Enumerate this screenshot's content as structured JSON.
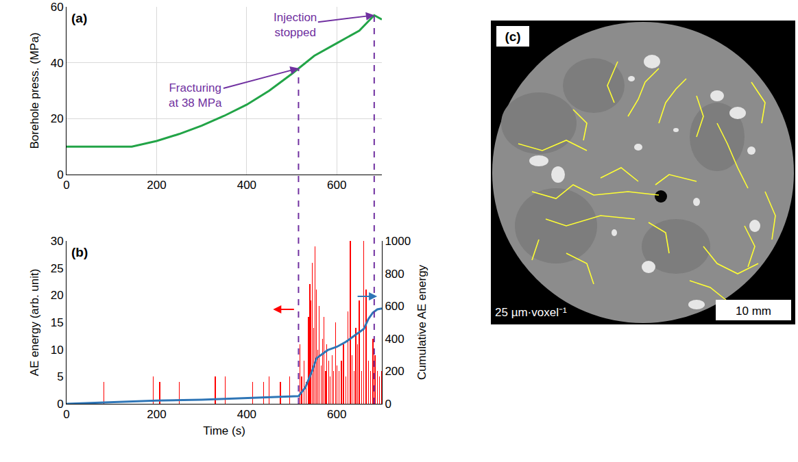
{
  "chart_data": [
    {
      "type": "line",
      "panel": "(a)",
      "y_label": "Borehole press. (MPa)",
      "color": "#22a447",
      "grid": true,
      "x": [
        0,
        50,
        100,
        145,
        200,
        250,
        300,
        350,
        400,
        450,
        500,
        515,
        550,
        600,
        650,
        683,
        700
      ],
      "values": [
        10,
        10,
        10,
        10,
        12,
        14.5,
        17.5,
        21,
        25,
        30,
        36,
        38,
        42.5,
        47,
        51.5,
        57,
        55.5
      ],
      "xlim": [
        0,
        700
      ],
      "xticks": [
        0,
        200,
        400,
        600
      ],
      "ylim": [
        0,
        60
      ],
      "yticks": [
        0,
        20,
        40,
        60
      ],
      "annotations": [
        {
          "text": "Fracturing at 38 MPa",
          "x": 515,
          "y": 38
        },
        {
          "text": "Injection stopped",
          "x": 683,
          "y": 57
        }
      ]
    },
    {
      "type": "bar",
      "panel": "(b)",
      "x_label": "Time (s)",
      "y_label": "AE energy (arb. unit)",
      "y2_label": "Cumulative AE energy",
      "grid": false,
      "xlim": [
        0,
        700
      ],
      "xticks": [
        0,
        200,
        400,
        600
      ],
      "ylim": [
        0,
        30
      ],
      "yticks": [
        0,
        5,
        10,
        15,
        20,
        25,
        30
      ],
      "y2lim": [
        0,
        1000
      ],
      "y2ticks": [
        0,
        200,
        400,
        600,
        800,
        1000
      ],
      "series": [
        {
          "type": "bar",
          "color": "#ff0000",
          "x": [
            83,
            192,
            207,
            250,
            330,
            352,
            413,
            437,
            450,
            475,
            495,
            518,
            522,
            527,
            532,
            537,
            540,
            543,
            546,
            549,
            552,
            555,
            558,
            561,
            565,
            568,
            571,
            575,
            578,
            582,
            585,
            590,
            593,
            597,
            600,
            605,
            610,
            615,
            620,
            625,
            630,
            634,
            638,
            642,
            646,
            650,
            655,
            660,
            665,
            670,
            675,
            680,
            685,
            690,
            695,
            700
          ],
          "values": [
            4,
            5,
            4,
            4,
            5,
            5,
            4,
            4,
            5,
            4,
            5,
            11,
            5,
            8,
            4,
            16,
            22,
            19,
            26,
            14,
            29,
            21,
            10,
            18,
            7,
            12,
            16,
            6,
            11,
            8,
            5,
            9,
            6,
            15,
            7,
            6,
            8,
            11,
            5,
            17,
            30,
            9,
            6,
            14,
            11,
            19,
            6,
            30,
            21,
            8,
            6,
            12,
            9,
            6,
            5,
            6
          ]
        },
        {
          "type": "line",
          "color": "#2e75b6",
          "axis": "y2",
          "x": [
            0,
            100,
            200,
            300,
            400,
            500,
            515,
            530,
            545,
            555,
            565,
            580,
            600,
            620,
            640,
            660,
            670,
            680,
            690,
            700
          ],
          "values": [
            0,
            10,
            20,
            25,
            35,
            45,
            47,
            100,
            200,
            280,
            300,
            330,
            350,
            380,
            420,
            460,
            520,
            560,
            580,
            585
          ]
        }
      ]
    }
  ],
  "image": {
    "panel": "(c)",
    "resolution": "25 µm·voxel⁻¹",
    "scale_bar": "10 mm"
  }
}
